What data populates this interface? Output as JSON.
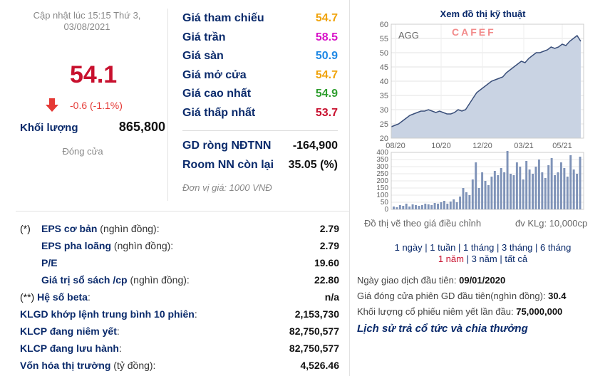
{
  "summary": {
    "updated": "Cập nhật lúc 15:15 Thứ 3, 03/08/2021",
    "price": "54.1",
    "change": "-0.6 (-1.1%)",
    "volume_label": "Khối lượng",
    "volume_value": "865,800",
    "status": "Đóng cửa"
  },
  "prices": [
    {
      "label": "Giá tham chiếu",
      "value": "54.7",
      "color": "#f0a30a"
    },
    {
      "label": "Giá trần",
      "value": "58.5",
      "color": "#d813c8"
    },
    {
      "label": "Giá sàn",
      "value": "50.9",
      "color": "#1e88e5"
    },
    {
      "label": "Giá mở cửa",
      "value": "54.7",
      "color": "#f0a30a"
    },
    {
      "label": "Giá cao nhất",
      "value": "54.9",
      "color": "#2e9e2e"
    },
    {
      "label": "Giá thấp nhất",
      "value": "53.7",
      "color": "#c8102e"
    }
  ],
  "foreign": {
    "net_label": "GD ròng NĐTNN",
    "net_value": "-164,900",
    "room_label": "Room NN còn lại",
    "room_value": "35.05 (%)",
    "unit_note": "Đơn vị giá: 1000 VNĐ"
  },
  "financials": [
    {
      "prefix": "(*)",
      "label": "EPS cơ bản",
      "note": " (nghìn đồng):",
      "value": "2.79"
    },
    {
      "prefix": "",
      "label": "EPS pha loãng",
      "note": " (nghìn đồng):",
      "value": "2.79"
    },
    {
      "prefix": "",
      "label": "P/E",
      "note": " :",
      "value": "19.60"
    },
    {
      "prefix": "",
      "label": "Giá trị sổ sách /cp",
      "note": " (nghìn đồng):",
      "value": "22.80"
    },
    {
      "prefix": "(**)",
      "label": "Hệ số beta",
      "note": ":",
      "value": "n/a"
    },
    {
      "prefix": "",
      "label": "KLGD khớp lệnh trung bình 10 phiên",
      "note": ":",
      "value": "2,153,730"
    },
    {
      "prefix": "",
      "label": "KLCP đang niêm yết",
      "note": ":",
      "value": "82,750,577"
    },
    {
      "prefix": "",
      "label": "KLCP đang lưu hành",
      "note": ":",
      "value": "82,750,577"
    },
    {
      "prefix": "",
      "label": "Vốn hóa thị trường",
      "note": " (tỷ đồng):",
      "value": "4,526.46"
    }
  ],
  "chart_panel": {
    "title": "Xem đồ thị kỹ thuật",
    "adjusted_note": "Đồ thị vẽ theo giá điều chỉnh",
    "vol_unit_note": "đv KLg: 10,000cp",
    "ranges_line1": [
      "1 ngày",
      "1 tuần",
      "1 tháng",
      "3 tháng",
      "6 tháng"
    ],
    "ranges_line2": [
      "1 năm",
      "3 năm",
      "tất cả"
    ],
    "active_range": "1 năm",
    "first_trade_label": "Ngày giao dịch đầu tiên:",
    "first_trade_value": "09/01/2020",
    "first_close_label": "Giá đóng cửa phiên GD đầu tiên(nghìn đồng):",
    "first_close_value": "30.4",
    "listed_label": "Khối lượng cổ phiếu niêm yết lần đầu:",
    "listed_value": "75,000,000",
    "history_link": "Lịch sử trả cổ tức và chia thưởng"
  },
  "chart_data": {
    "type": "area",
    "ticker": "AGG",
    "watermark": "CAFEF",
    "x_ticks": [
      "08/20",
      "10/20",
      "12/20",
      "03/21",
      "05/21"
    ],
    "y_ticks": [
      20,
      25,
      30,
      35,
      40,
      45,
      50,
      55,
      60
    ],
    "ylim": [
      20,
      60
    ],
    "price_series": [
      24,
      24.5,
      25,
      26,
      27,
      28,
      28.5,
      29,
      29.5,
      29.5,
      30,
      29.5,
      29,
      29.5,
      29,
      28.5,
      28.5,
      29,
      30,
      29.5,
      30,
      32,
      34,
      36,
      37,
      38,
      39,
      40,
      40.5,
      41,
      41.5,
      43,
      44,
      45,
      46,
      47,
      46.5,
      48,
      49,
      50,
      50,
      50.5,
      51,
      52,
      51.5,
      52,
      53,
      52.5,
      54,
      55,
      56,
      54
    ],
    "volume_ticks": [
      0,
      50,
      100,
      150,
      200,
      250,
      300,
      350,
      400
    ],
    "volume_ylim": [
      0,
      400
    ],
    "volume_series": [
      20,
      15,
      30,
      25,
      40,
      20,
      35,
      30,
      25,
      30,
      40,
      35,
      30,
      45,
      40,
      50,
      60,
      40,
      55,
      70,
      50,
      90,
      150,
      120,
      100,
      210,
      330,
      150,
      260,
      200,
      170,
      230,
      270,
      240,
      290,
      260,
      410,
      250,
      240,
      330,
      300,
      210,
      340,
      280,
      250,
      300,
      350,
      260,
      220,
      310,
      360,
      240,
      260,
      330,
      290,
      230,
      380,
      280,
      250,
      370
    ]
  }
}
